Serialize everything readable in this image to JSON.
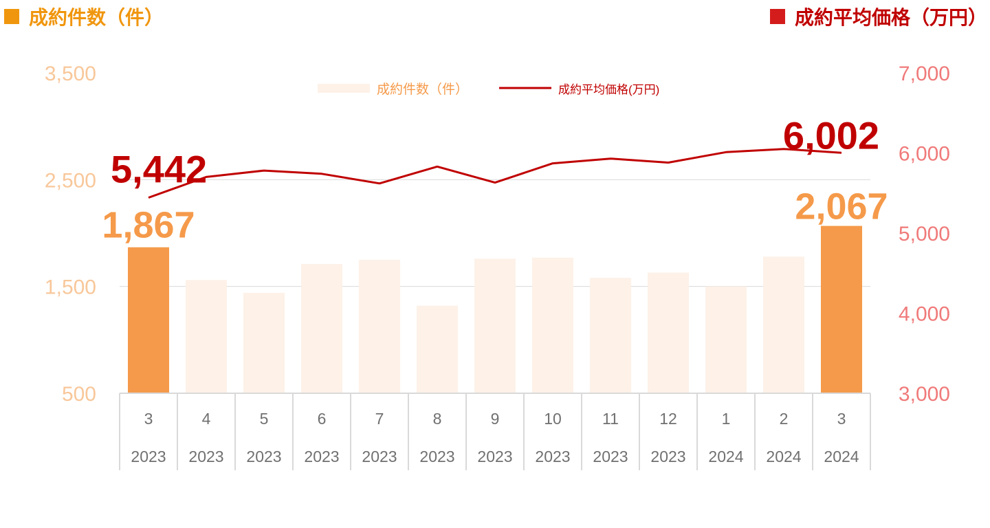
{
  "header": {
    "left_title": "成約件数（件）",
    "right_title": "成約平均価格（万円）",
    "left_color": "#f0960e",
    "right_color": "#d41c1c"
  },
  "colors": {
    "bar_highlight": "#f59a4a",
    "bar_muted": "#fdf1e8",
    "line": "#c00000",
    "left_axis_text": "#f8c79a",
    "right_axis_text": "#f07a7a",
    "category_text": "#707070",
    "grid": "#d9d9d9"
  },
  "chart_data": {
    "type": "bar",
    "categories": [
      {
        "month": "3",
        "year": "2023"
      },
      {
        "month": "4",
        "year": "2023"
      },
      {
        "month": "5",
        "year": "2023"
      },
      {
        "month": "6",
        "year": "2023"
      },
      {
        "month": "7",
        "year": "2023"
      },
      {
        "month": "8",
        "year": "2023"
      },
      {
        "month": "9",
        "year": "2023"
      },
      {
        "month": "10",
        "year": "2023"
      },
      {
        "month": "11",
        "year": "2023"
      },
      {
        "month": "12",
        "year": "2023"
      },
      {
        "month": "1",
        "year": "2024"
      },
      {
        "month": "2",
        "year": "2024"
      },
      {
        "month": "3",
        "year": "2024"
      }
    ],
    "series": [
      {
        "name": "成約件数（件）",
        "type": "bar",
        "axis": "left",
        "values": [
          1867,
          1560,
          1440,
          1710,
          1750,
          1320,
          1760,
          1770,
          1580,
          1630,
          1500,
          1780,
          2067
        ],
        "highlight": [
          0,
          12
        ]
      },
      {
        "name": "成約平均価格(万円)",
        "type": "line",
        "axis": "right",
        "values": [
          5442,
          5700,
          5780,
          5740,
          5620,
          5830,
          5630,
          5870,
          5930,
          5880,
          6010,
          6050,
          6002
        ]
      }
    ],
    "y_left": {
      "ticks": [
        "500",
        "1,500",
        "2,500",
        "3,500"
      ],
      "range": [
        500,
        3500
      ]
    },
    "y_right": {
      "ticks": [
        "3,000",
        "4,000",
        "5,000",
        "6,000",
        "7,000"
      ],
      "range": [
        3000,
        7000
      ]
    },
    "annotations": {
      "bar_first": "1,867",
      "bar_last": "2,067",
      "line_first": "5,442",
      "line_last": "6,002"
    },
    "legend": {
      "position": "top-center"
    },
    "grid": true
  }
}
